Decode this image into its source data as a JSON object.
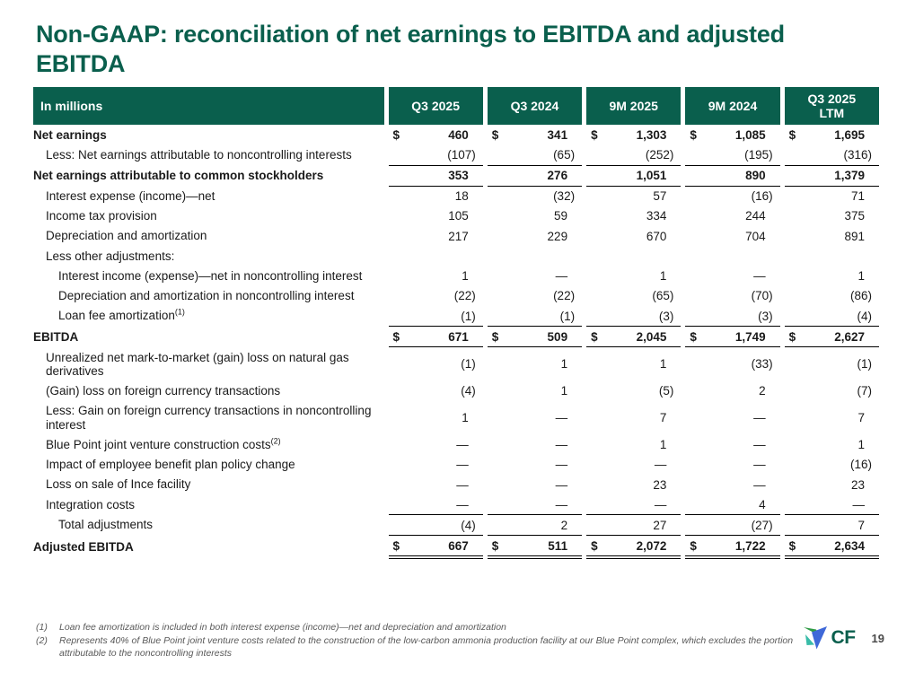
{
  "title": "Non-GAAP: reconciliation of net earnings to EBITDA and adjusted EBITDA",
  "colors": {
    "brand_green": "#0a5f4d",
    "header_bg": "#0a5f4d",
    "body_text": "#1a1a1a",
    "footnote_gray": "#595959",
    "logo_green": "#2f9b44",
    "logo_teal": "#39bca8",
    "logo_blue": "#3e68d8"
  },
  "table": {
    "currency_symbol": "$",
    "nil_symbol": "—",
    "header": [
      "In millions",
      "Q3 2025",
      "Q3 2024",
      "9M 2025",
      "9M 2024",
      "Q3 2025\nLTM"
    ],
    "rows": [
      {
        "label": "Net earnings",
        "bold": true,
        "dollar": true,
        "indent": 0,
        "values": [
          "460",
          "341",
          "1,303",
          "1,085",
          "1,695"
        ]
      },
      {
        "label": "Less: Net earnings attributable to noncontrolling interests",
        "indent": 1,
        "values": [
          "(107)",
          "(65)",
          "(252)",
          "(195)",
          "(316)"
        ]
      },
      {
        "label": "Net earnings attributable to common stockholders",
        "bold": true,
        "indent": 0,
        "rule_top": true,
        "values": [
          "353",
          "276",
          "1,051",
          "890",
          "1,379"
        ]
      },
      {
        "label": "Interest expense (income)—net",
        "indent": 1,
        "rule_top": true,
        "values": [
          "18",
          "(32)",
          "57",
          "(16)",
          "71"
        ]
      },
      {
        "label": "Income tax provision",
        "indent": 1,
        "values": [
          "105",
          "59",
          "334",
          "244",
          "375"
        ]
      },
      {
        "label": "Depreciation and amortization",
        "indent": 1,
        "values": [
          "217",
          "229",
          "670",
          "704",
          "891"
        ]
      },
      {
        "label": "Less other adjustments:",
        "indent": 1,
        "values": [
          "",
          "",
          "",
          "",
          ""
        ]
      },
      {
        "label": "Interest income (expense)—net in noncontrolling interest",
        "indent": 2,
        "values": [
          "1",
          "—",
          "1",
          "—",
          "1"
        ]
      },
      {
        "label": "Depreciation and amortization in noncontrolling interest",
        "indent": 2,
        "values": [
          "(22)",
          "(22)",
          "(65)",
          "(70)",
          "(86)"
        ]
      },
      {
        "label": "Loan fee amortization",
        "sup": "(1)",
        "indent": 2,
        "values": [
          "(1)",
          "(1)",
          "(3)",
          "(3)",
          "(4)"
        ]
      },
      {
        "label": "EBITDA",
        "bold": true,
        "dollar": true,
        "indent": 0,
        "rule_top": true,
        "rule_bottom": true,
        "values": [
          "671",
          "509",
          "2,045",
          "1,749",
          "2,627"
        ]
      },
      {
        "label": "Unrealized net mark-to-market (gain) loss on natural gas derivatives",
        "indent": 1,
        "values": [
          "(1)",
          "1",
          "1",
          "(33)",
          "(1)"
        ]
      },
      {
        "label": "(Gain) loss on foreign currency transactions",
        "indent": 1,
        "values": [
          "(4)",
          "1",
          "(5)",
          "2",
          "(7)"
        ]
      },
      {
        "label": "Less: Gain on foreign currency transactions in noncontrolling interest",
        "indent": 1,
        "values": [
          "1",
          "—",
          "7",
          "—",
          "7"
        ]
      },
      {
        "label": "Blue Point joint venture construction costs",
        "sup": "(2)",
        "indent": 1,
        "values": [
          "—",
          "—",
          "1",
          "—",
          "1"
        ]
      },
      {
        "label": "Impact of employee benefit plan policy change",
        "indent": 1,
        "values": [
          "—",
          "—",
          "—",
          "—",
          "(16)"
        ]
      },
      {
        "label": "Loss on sale of Ince facility",
        "indent": 1,
        "values": [
          "—",
          "—",
          "23",
          "—",
          "23"
        ]
      },
      {
        "label": "Integration costs",
        "indent": 1,
        "values": [
          "—",
          "—",
          "—",
          "4",
          "—"
        ]
      },
      {
        "label": "Total adjustments",
        "indent": 2,
        "rule_top": true,
        "values": [
          "(4)",
          "2",
          "27",
          "(27)",
          "7"
        ]
      },
      {
        "label": "Adjusted EBITDA",
        "bold": true,
        "dollar": true,
        "indent": 0,
        "rule_top": true,
        "double_bottom": true,
        "values": [
          "667",
          "511",
          "2,072",
          "1,722",
          "2,634"
        ]
      }
    ]
  },
  "footnotes": [
    {
      "num": "(1)",
      "text": "Loan fee amortization is included in both interest expense (income)—net and depreciation and amortization"
    },
    {
      "num": "(2)",
      "text": "Represents 40% of Blue Point joint venture costs related to the construction of the low-carbon ammonia production facility at our Blue Point complex, which excludes the portion attributable to the noncontrolling interests"
    }
  ],
  "logo_text": "CF",
  "page_number": "19"
}
